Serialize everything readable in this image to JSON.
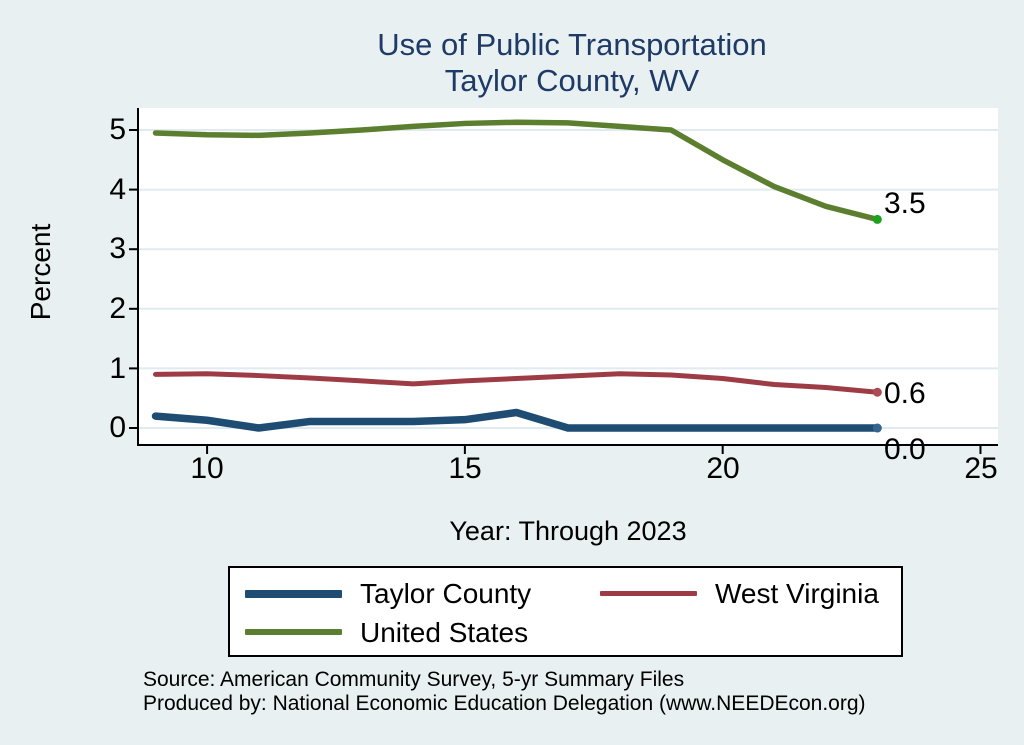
{
  "window": {
    "background": "#e8f0f2"
  },
  "title": {
    "line1": "Use of Public Transportation",
    "line2": "Taylor County, WV",
    "color": "#1e3a66"
  },
  "chart_data": {
    "type": "line",
    "title": "Use of Public Transportation, Taylor County, WV",
    "xlabel": "Year: Through 2023",
    "ylabel": "Percent",
    "x": [
      9,
      10,
      11,
      12,
      13,
      14,
      15,
      16,
      17,
      18,
      19,
      20,
      21,
      22,
      23
    ],
    "x_ticks": [
      "10",
      "15",
      "20",
      "25"
    ],
    "x_tick_values": [
      10,
      15,
      20,
      25
    ],
    "y_ticks": [
      "5",
      "4",
      "3",
      "2",
      "1",
      "0"
    ],
    "y_tick_values": [
      5,
      4,
      3,
      2,
      1,
      0
    ],
    "x_range": [
      8.66,
      25.34
    ],
    "y_range": [
      -0.285,
      5.369
    ],
    "grid": true,
    "legend_position": "bottom",
    "colors": {
      "grid": "#e0ebf0",
      "axis": "#000000",
      "plot_background": "#ffffff"
    },
    "series": [
      {
        "name": "Taylor County",
        "color": "#1e4c72",
        "marker_color": "#35648c",
        "stroke_width": 7.5,
        "end_label": "0.0",
        "values": [
          0.2,
          0.13,
          0.0,
          0.11,
          0.11,
          0.11,
          0.14,
          0.26,
          0.0,
          0.0,
          0.0,
          0.0,
          0.0,
          0.0,
          0.0
        ]
      },
      {
        "name": "West Virginia",
        "color": "#9e3c46",
        "marker_color": "#ad4a55",
        "stroke_width": 5,
        "end_label": "0.6",
        "values": [
          0.9,
          0.91,
          0.88,
          0.84,
          0.79,
          0.74,
          0.79,
          0.83,
          0.87,
          0.91,
          0.89,
          0.83,
          0.73,
          0.68,
          0.6
        ]
      },
      {
        "name": "United States",
        "color": "#5c7e2f",
        "marker_color": "#1ca21c",
        "stroke_width": 5.5,
        "end_label": "3.5",
        "values": [
          4.95,
          4.92,
          4.91,
          4.95,
          5.0,
          5.06,
          5.11,
          5.13,
          5.12,
          5.06,
          5.0,
          4.5,
          4.05,
          3.72,
          3.5
        ]
      }
    ]
  },
  "footer": {
    "source_line": "Source: American Community Survey, 5-yr Summary Files",
    "produced_line": "Produced by: National Economic Education Delegation (www.NEEDEcon.org)"
  }
}
